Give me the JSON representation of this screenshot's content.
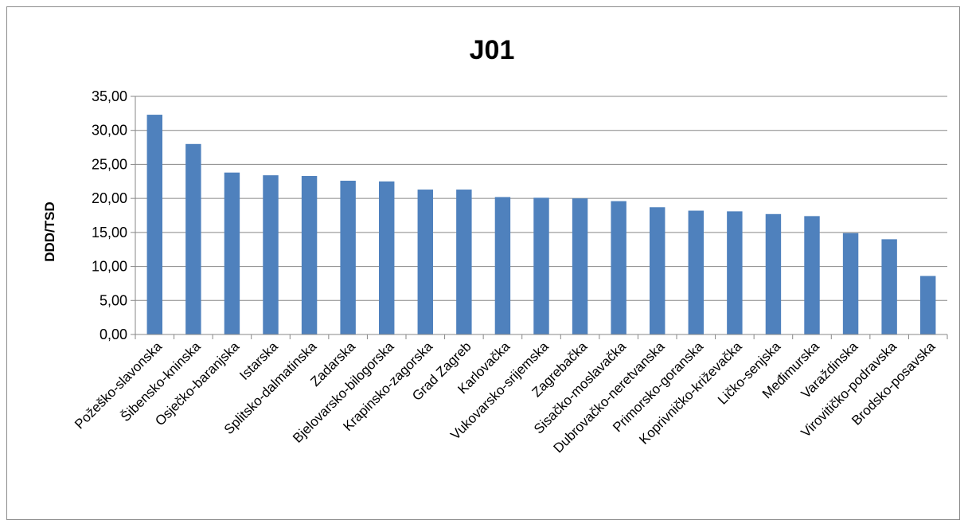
{
  "chart_data": {
    "type": "bar",
    "title": "J01",
    "xlabel": "",
    "ylabel": "DDD/TSD",
    "ylim": [
      0,
      35
    ],
    "yticks": [
      "0,00",
      "5,00",
      "10,00",
      "15,00",
      "20,00",
      "25,00",
      "30,00",
      "35,00"
    ],
    "grid": true,
    "bar_color": "#4f81bd",
    "categories": [
      "Požeško-slavonska",
      "Šibensko-kninska",
      "Osječko-baranjska",
      "Istarska",
      "Splitsko-dalmatinska",
      "Zadarska",
      "Bjelovarsko-bilogorska",
      "Krapinsko-zagorska",
      "Grad Zagreb",
      "Karlovačka",
      "Vukovarsko-srijemska",
      "Zagrebačka",
      "Sisačko-moslavačka",
      "Dubrovačko-neretvanska",
      "Primorsko-goranska",
      "Koprivničko-križevačka",
      "Ličko-senjska",
      "Međimurska",
      "Varaždinska",
      "Virovitičko-podravska",
      "Brodsko-posavska"
    ],
    "values": [
      32.3,
      28.0,
      23.8,
      23.4,
      23.3,
      22.6,
      22.5,
      21.3,
      21.3,
      20.2,
      20.1,
      20.0,
      19.6,
      18.7,
      18.2,
      18.1,
      17.7,
      17.4,
      14.9,
      14.0,
      8.6
    ]
  }
}
